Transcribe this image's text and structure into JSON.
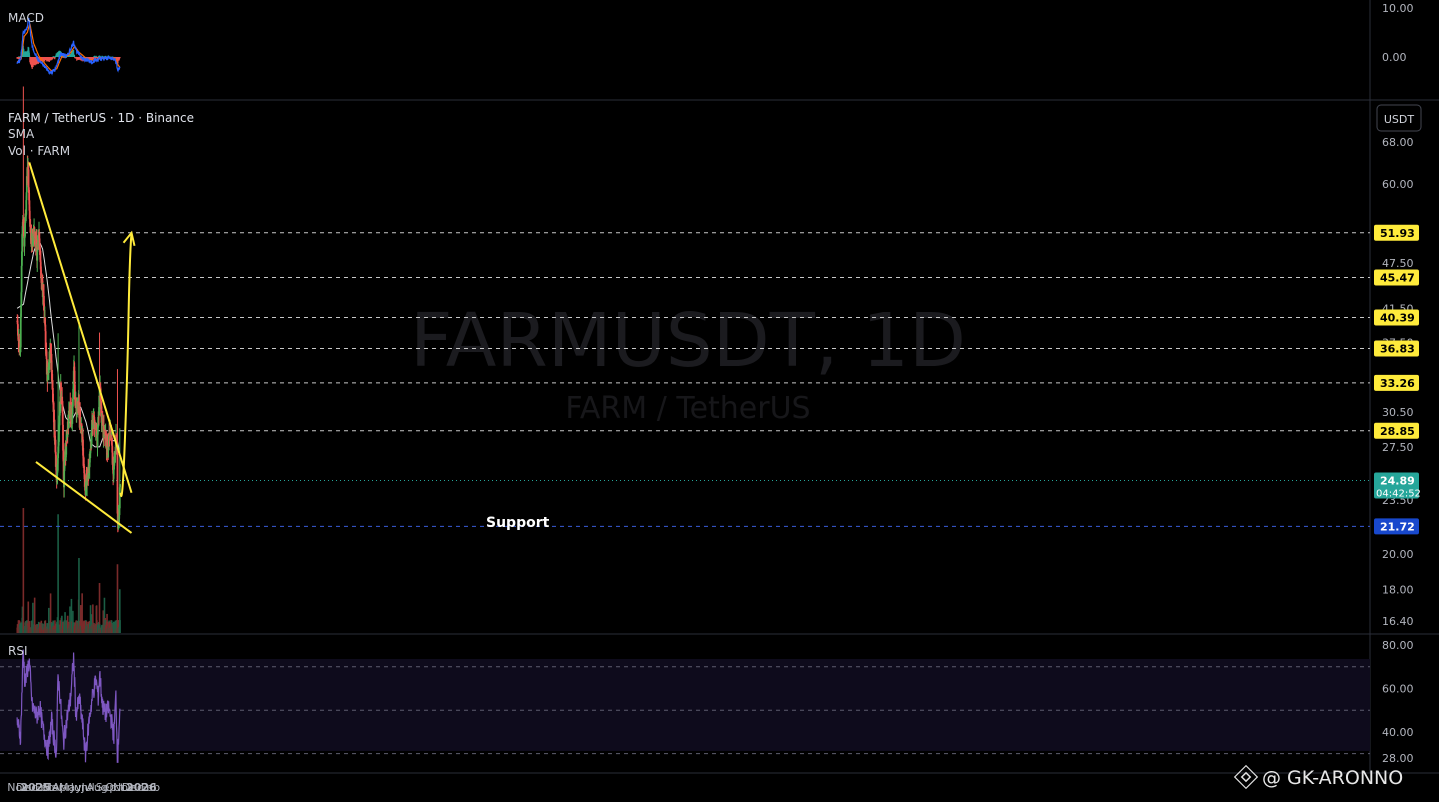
{
  "header": {
    "symbol": "FARM / TetherUS · 1D · Binance",
    "indicator_1": "SMA",
    "indicator_2": "Vol · FARM",
    "currency_button": "USDT",
    "watermark_main": "FARMUSDT, 1D",
    "watermark_sub": "FARM / TetherUS"
  },
  "panes": {
    "macd_title": "MACD",
    "rsi_title": "RSI"
  },
  "annotations": {
    "support_label": "Support",
    "author": "@ GK-ARONNO"
  },
  "colors": {
    "background": "#000000",
    "bull": "#26a69a",
    "bull_bright": "#4caf50",
    "bear": "#ef5350",
    "trendline": "#ffeb3b",
    "sma": "#e0e0e0",
    "rsi": "#7e57c2",
    "macd": "#2962ff",
    "signal": "#ff6d00",
    "price_tag_bg": "#ffeb3b",
    "current_tag_bg": "#26a69a",
    "support_tag_bg": "#1848cc"
  },
  "chart_data": [
    {
      "type": "candlestick",
      "title": "FARM / TetherUS · 1D · Binance",
      "x_ticks": [
        "Nov",
        "Dec",
        "2025",
        "Feb",
        "Mar",
        "Apr",
        "May",
        "Jun",
        "Jul",
        "Aug",
        "Sep",
        "Oct",
        "Nov",
        "Dec",
        "2026",
        "Feb"
      ],
      "y_ticks": [
        68.0,
        60.0,
        47.5,
        41.5,
        37.5,
        30.5,
        27.5,
        23.5,
        20.0,
        18.0,
        16.4
      ],
      "y_scale": "log",
      "ylim": [
        16.0,
        76.0
      ],
      "key_levels": [
        {
          "label": "51.93",
          "value": 51.93,
          "style": "dashed",
          "tag": "yellow"
        },
        {
          "label": "45.47",
          "value": 45.47,
          "style": "dashed",
          "tag": "yellow"
        },
        {
          "label": "40.39",
          "value": 40.39,
          "style": "dashed",
          "tag": "yellow"
        },
        {
          "label": "36.83",
          "value": 36.83,
          "style": "dashed",
          "tag": "yellow"
        },
        {
          "label": "33.26",
          "value": 33.26,
          "style": "dashed",
          "tag": "yellow"
        },
        {
          "label": "28.85",
          "value": 28.85,
          "style": "dashed",
          "tag": "yellow"
        },
        {
          "label": "24.89",
          "value": 24.89,
          "style": "dotted",
          "tag": "current",
          "sublabel": "04:42:52"
        },
        {
          "label": "21.72",
          "value": 21.72,
          "style": "dashed",
          "tag": "support"
        }
      ],
      "price_path": [
        [
          "2024-10-29",
          40.0
        ],
        [
          "2024-11-05",
          37.0
        ],
        [
          "2024-11-08",
          36.0
        ],
        [
          "2024-11-12",
          43.0
        ],
        [
          "2024-11-15",
          52.0
        ],
        [
          "2024-11-18",
          53.0
        ],
        [
          "2024-11-22",
          51.0
        ],
        [
          "2024-11-28",
          56.0
        ],
        [
          "2024-12-03",
          63.0
        ],
        [
          "2024-12-06",
          62.0
        ],
        [
          "2024-12-10",
          56.0
        ],
        [
          "2024-12-14",
          52.0
        ],
        [
          "2024-12-18",
          50.0
        ],
        [
          "2024-12-24",
          52.0
        ],
        [
          "2024-12-31",
          51.0
        ],
        [
          "2025-01-05",
          49.0
        ],
        [
          "2025-01-12",
          52.0
        ],
        [
          "2025-01-18",
          47.0
        ],
        [
          "2025-01-25",
          44.0
        ],
        [
          "2025-02-01",
          40.0
        ],
        [
          "2025-02-08",
          34.0
        ],
        [
          "2025-02-14",
          35.0
        ],
        [
          "2025-02-20",
          37.0
        ],
        [
          "2025-02-26",
          34.0
        ],
        [
          "2025-03-04",
          30.0
        ],
        [
          "2025-03-10",
          27.0
        ],
        [
          "2025-03-14",
          24.5
        ],
        [
          "2025-03-20",
          27.0
        ],
        [
          "2025-03-28",
          33.0
        ],
        [
          "2025-04-03",
          31.0
        ],
        [
          "2025-04-07",
          24.5
        ],
        [
          "2025-04-12",
          27.0
        ],
        [
          "2025-04-18",
          28.0
        ],
        [
          "2025-04-25",
          30.0
        ],
        [
          "2025-05-01",
          31.0
        ],
        [
          "2025-05-06",
          30.0
        ],
        [
          "2025-05-12",
          35.0
        ],
        [
          "2025-05-18",
          31.0
        ],
        [
          "2025-05-25",
          31.0
        ],
        [
          "2025-06-01",
          30.5
        ],
        [
          "2025-06-08",
          29.0
        ],
        [
          "2025-06-14",
          27.0
        ],
        [
          "2025-06-20",
          24.0
        ],
        [
          "2025-06-25",
          25.0
        ],
        [
          "2025-07-01",
          25.5
        ],
        [
          "2025-07-08",
          27.0
        ],
        [
          "2025-07-14",
          29.5
        ],
        [
          "2025-07-20",
          30.0
        ],
        [
          "2025-07-26",
          29.0
        ],
        [
          "2025-08-01",
          28.0
        ],
        [
          "2025-08-06",
          30.0
        ],
        [
          "2025-08-10",
          33.0
        ],
        [
          "2025-08-16",
          30.0
        ],
        [
          "2025-08-22",
          29.0
        ],
        [
          "2025-08-28",
          28.5
        ],
        [
          "2025-09-04",
          27.5
        ],
        [
          "2025-09-10",
          28.0
        ],
        [
          "2025-09-16",
          29.0
        ],
        [
          "2025-09-21",
          27.5
        ],
        [
          "2025-09-26",
          25.5
        ],
        [
          "2025-10-01",
          26.5
        ],
        [
          "2025-10-05",
          28.5
        ],
        [
          "2025-10-09",
          27.0
        ],
        [
          "2025-10-10",
          23.0
        ],
        [
          "2025-10-12",
          21.7
        ],
        [
          "2025-10-15",
          22.5
        ],
        [
          "2025-10-17",
          23.5
        ],
        [
          "2025-10-19",
          24.89
        ]
      ],
      "sma_path": [
        [
          "2024-10-29",
          41.5
        ],
        [
          "2024-11-20",
          42.0
        ],
        [
          "2024-12-10",
          46.0
        ],
        [
          "2024-12-25",
          49.0
        ],
        [
          "2025-01-10",
          51.0
        ],
        [
          "2025-01-25",
          49.5
        ],
        [
          "2025-02-10",
          45.0
        ],
        [
          "2025-02-25",
          40.0
        ],
        [
          "2025-03-12",
          36.0
        ],
        [
          "2025-03-28",
          32.0
        ],
        [
          "2025-04-15",
          30.0
        ],
        [
          "2025-05-01",
          29.5
        ],
        [
          "2025-05-20",
          30.5
        ],
        [
          "2025-06-05",
          31.0
        ],
        [
          "2025-06-25",
          29.5
        ],
        [
          "2025-07-10",
          27.8
        ],
        [
          "2025-07-25",
          27.5
        ],
        [
          "2025-08-10",
          27.5
        ],
        [
          "2025-08-25",
          28.5
        ],
        [
          "2025-09-10",
          28.5
        ],
        [
          "2025-09-25",
          28.0
        ],
        [
          "2025-10-10",
          28.0
        ],
        [
          "2025-10-19",
          27.0
        ]
      ],
      "upper_trendline": [
        [
          "2024-12-10",
          64.0
        ],
        [
          "2025-11-28",
          24.0
        ]
      ],
      "lower_trendline": [
        [
          "2025-01-02",
          26.3
        ],
        [
          "2025-11-28",
          21.3
        ]
      ],
      "projection": [
        [
          "2025-10-21",
          24.0
        ],
        [
          "2025-10-27",
          23.8
        ],
        [
          "2025-11-05",
          28.0
        ],
        [
          "2025-11-18",
          41.0
        ],
        [
          "2025-11-28",
          51.93
        ]
      ],
      "volume_spikes": [
        [
          "2024-11-19",
          1.0
        ],
        [
          "2025-03-19",
          0.95
        ],
        [
          "2025-05-30",
          0.6
        ],
        [
          "2025-08-09",
          0.4
        ],
        [
          "2025-10-10",
          0.55
        ],
        [
          "2025-10-18",
          0.35
        ]
      ]
    },
    {
      "type": "line",
      "title": "RSI",
      "y_ticks": [
        80.0,
        60.0,
        40.0,
        28.0
      ],
      "ylim": [
        24,
        86
      ],
      "bands": [
        70,
        50,
        30
      ],
      "series": [
        {
          "name": "RSI",
          "values_path": [
            [
              "2024-10-29",
              45
            ],
            [
              "2024-11-10",
              38
            ],
            [
              "2024-11-19",
              78
            ],
            [
              "2024-11-25",
              62
            ],
            [
              "2024-12-05",
              70
            ],
            [
              "2024-12-10",
              72
            ],
            [
              "2024-12-20",
              52
            ],
            [
              "2025-01-05",
              47
            ],
            [
              "2025-01-15",
              52
            ],
            [
              "2025-01-25",
              42
            ],
            [
              "2025-02-05",
              36
            ],
            [
              "2025-02-12",
              31
            ],
            [
              "2025-02-25",
              45
            ],
            [
              "2025-03-05",
              37
            ],
            [
              "2025-03-14",
              30
            ],
            [
              "2025-03-19",
              66
            ],
            [
              "2025-03-25",
              58
            ],
            [
              "2025-04-07",
              35
            ],
            [
              "2025-04-20",
              47
            ],
            [
              "2025-05-01",
              55
            ],
            [
              "2025-05-12",
              74
            ],
            [
              "2025-05-20",
              48
            ],
            [
              "2025-06-01",
              55
            ],
            [
              "2025-06-15",
              40
            ],
            [
              "2025-06-22",
              29
            ],
            [
              "2025-07-05",
              46
            ],
            [
              "2025-07-18",
              58
            ],
            [
              "2025-07-28",
              64
            ],
            [
              "2025-08-05",
              56
            ],
            [
              "2025-08-10",
              67
            ],
            [
              "2025-08-20",
              52
            ],
            [
              "2025-08-30",
              48
            ],
            [
              "2025-09-10",
              51
            ],
            [
              "2025-09-20",
              45
            ],
            [
              "2025-09-28",
              38
            ],
            [
              "2025-10-05",
              57
            ],
            [
              "2025-10-10",
              30
            ],
            [
              "2025-10-12",
              29
            ],
            [
              "2025-10-16",
              44
            ],
            [
              "2025-10-19",
              51
            ]
          ]
        }
      ]
    },
    {
      "type": "line",
      "title": "MACD",
      "y_ticks": [
        10.0,
        0.0
      ],
      "ylim": [
        -6,
        12
      ],
      "series": [
        {
          "name": "MACD",
          "values_path": [
            [
              "2024-10-29",
              -1.5
            ],
            [
              "2024-11-10",
              -0.5
            ],
            [
              "2024-11-19",
              5.0
            ],
            [
              "2024-12-01",
              5.6
            ],
            [
              "2024-12-08",
              8.0
            ],
            [
              "2024-12-20",
              2.0
            ],
            [
              "2025-01-10",
              -0.6
            ],
            [
              "2025-02-05",
              -2.2
            ],
            [
              "2025-02-20",
              -3.2
            ],
            [
              "2025-03-10",
              -2.6
            ],
            [
              "2025-03-28",
              0.6
            ],
            [
              "2025-04-20",
              0.2
            ],
            [
              "2025-05-12",
              3.0
            ],
            [
              "2025-05-25",
              0.9
            ],
            [
              "2025-06-20",
              -0.6
            ],
            [
              "2025-07-15",
              -0.9
            ],
            [
              "2025-08-10",
              -0.4
            ],
            [
              "2025-09-10",
              -0.2
            ],
            [
              "2025-10-01",
              -0.3
            ],
            [
              "2025-10-12",
              -2.5
            ],
            [
              "2025-10-19",
              -2.2
            ]
          ]
        },
        {
          "name": "Signal",
          "values_path": [
            [
              "2024-10-29",
              -1.0
            ],
            [
              "2024-11-12",
              -0.4
            ],
            [
              "2024-11-22",
              4.2
            ],
            [
              "2024-12-03",
              5.0
            ],
            [
              "2024-12-12",
              6.8
            ],
            [
              "2024-12-25",
              2.8
            ],
            [
              "2025-01-12",
              0.2
            ],
            [
              "2025-02-08",
              -1.8
            ],
            [
              "2025-02-24",
              -2.8
            ],
            [
              "2025-03-15",
              -2.4
            ],
            [
              "2025-04-02",
              0.2
            ],
            [
              "2025-04-25",
              0.3
            ],
            [
              "2025-05-16",
              2.2
            ],
            [
              "2025-05-30",
              1.0
            ],
            [
              "2025-06-25",
              -0.3
            ],
            [
              "2025-07-20",
              -0.7
            ],
            [
              "2025-08-15",
              -0.3
            ],
            [
              "2025-09-12",
              -0.1
            ],
            [
              "2025-10-03",
              -0.2
            ],
            [
              "2025-10-14",
              -1.8
            ],
            [
              "2025-10-19",
              -2.0
            ]
          ]
        }
      ]
    }
  ]
}
